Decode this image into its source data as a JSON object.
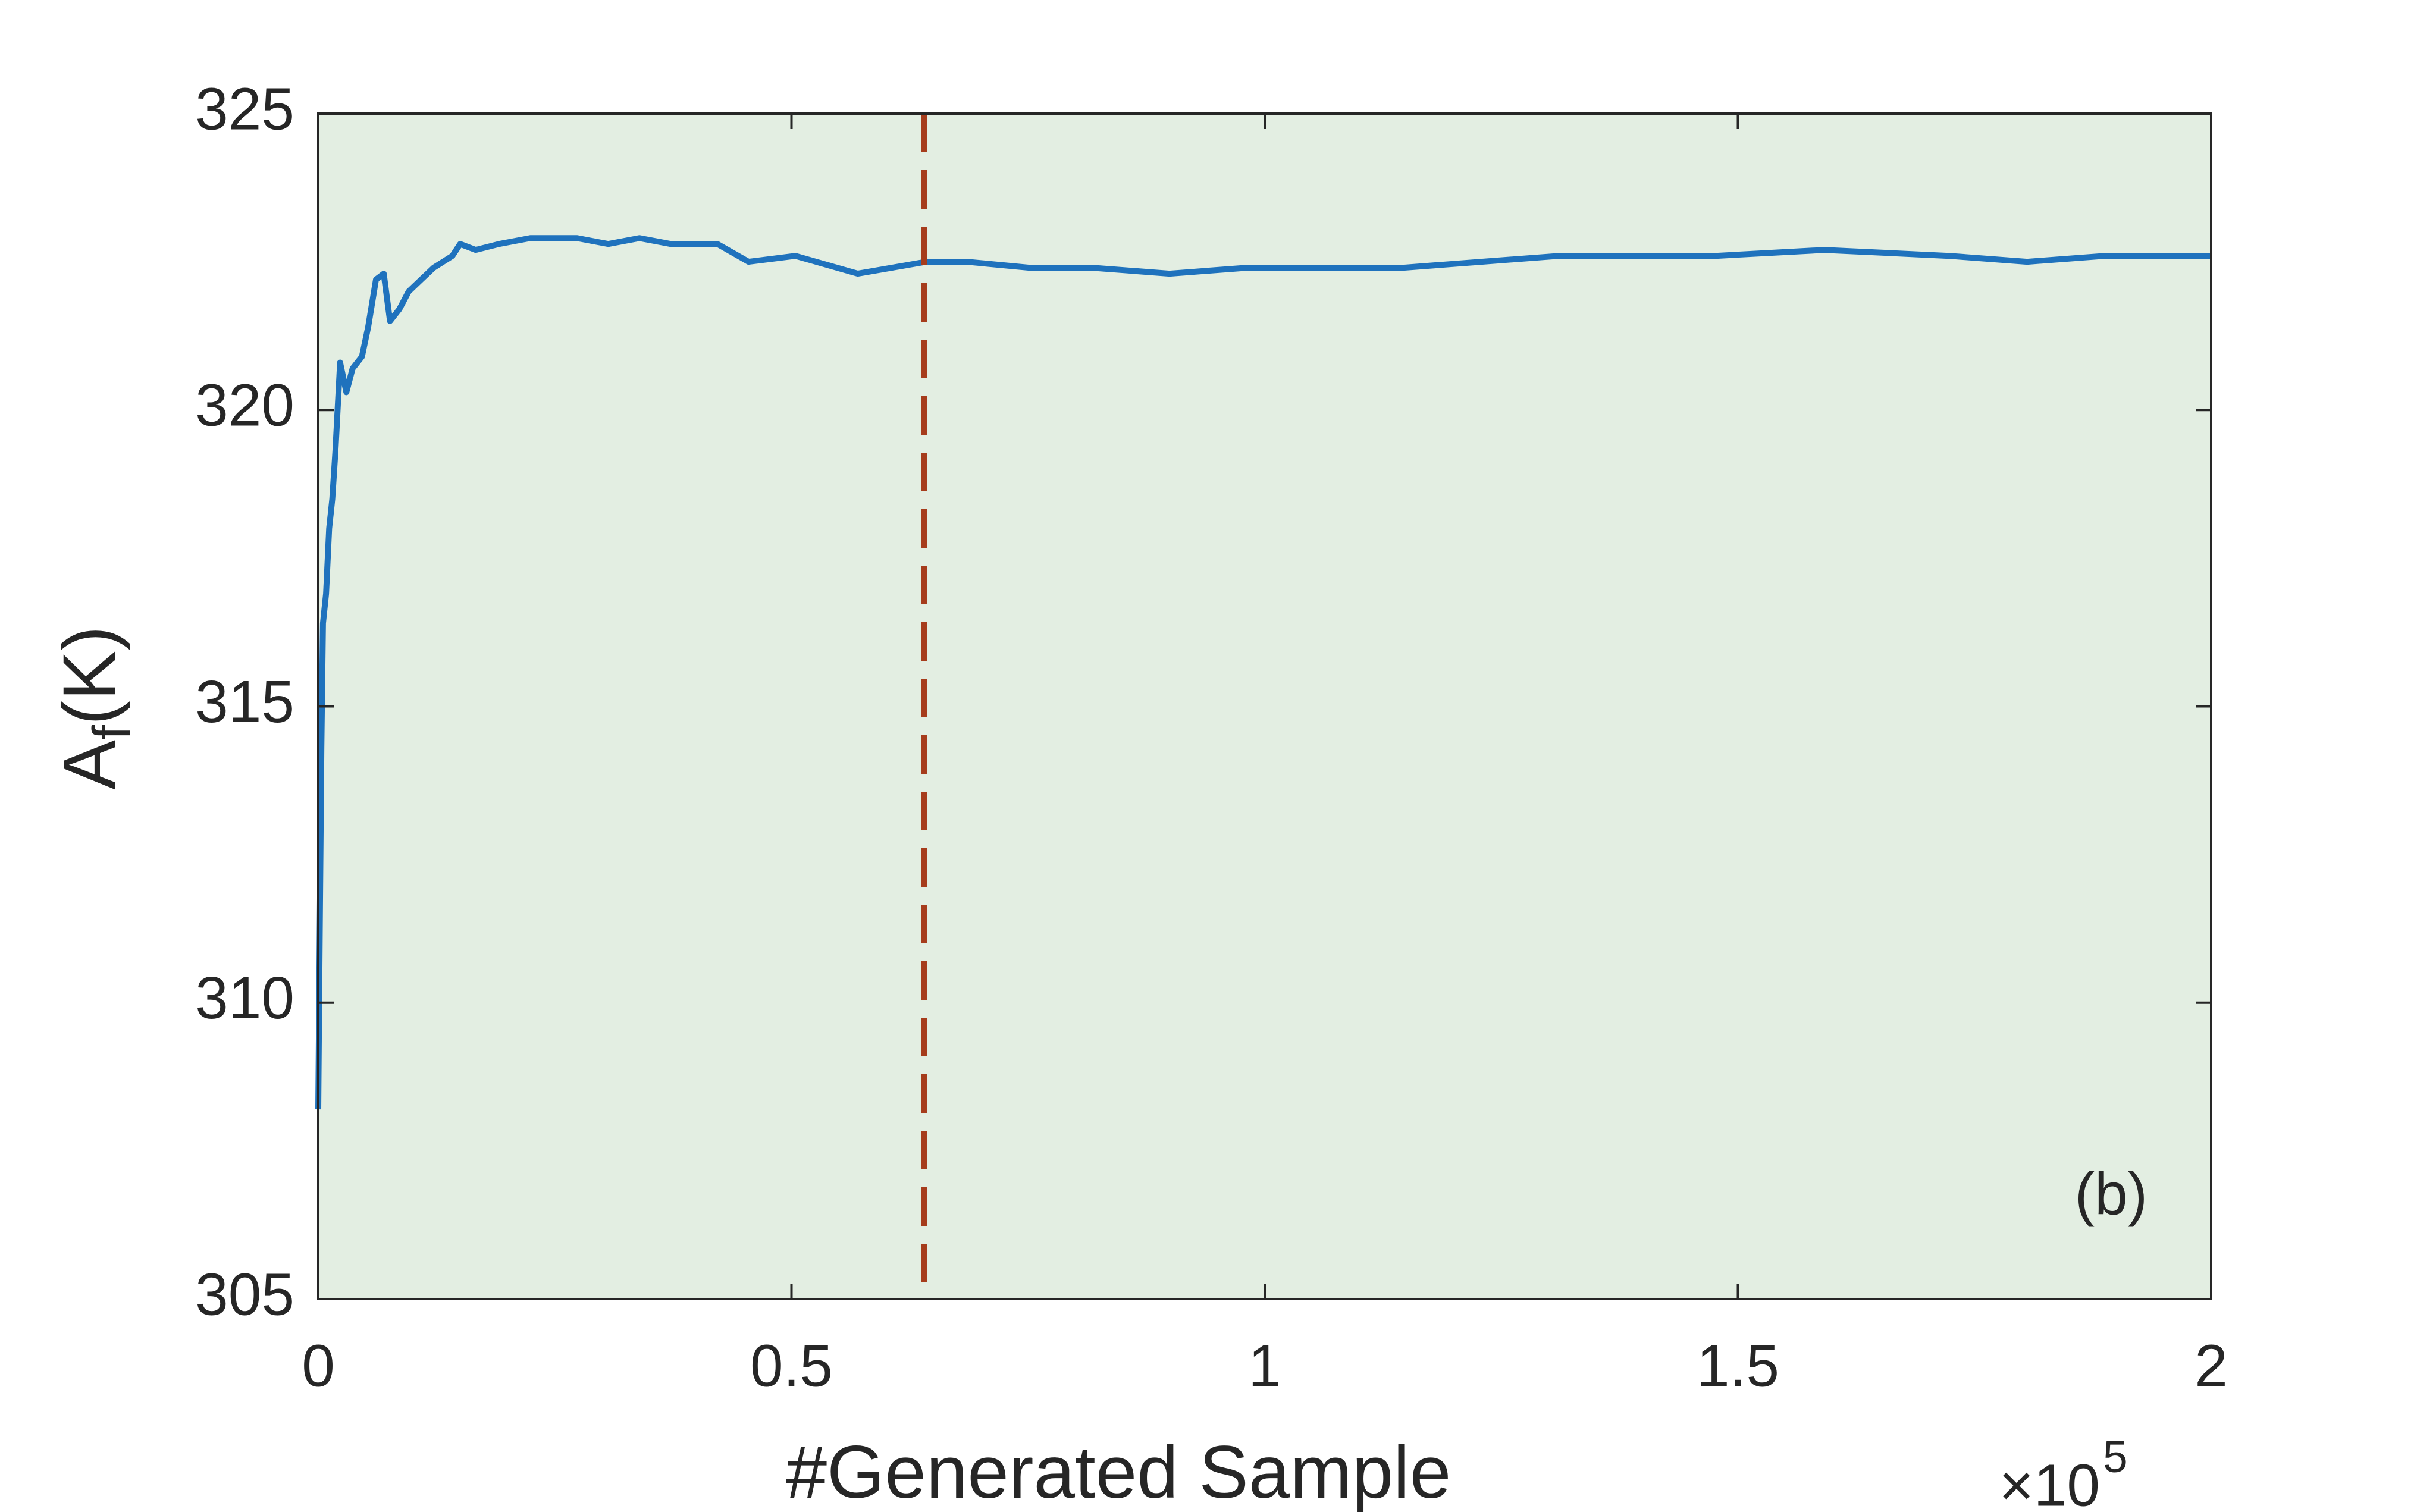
{
  "chart_data": {
    "type": "line",
    "xlabel": "#Generated Sample",
    "x_multiplier": {
      "base": "×10",
      "power": "5"
    },
    "ylabel": {
      "main": "A",
      "subscript": "f",
      "unit": "(K)"
    },
    "annotation": "(b)",
    "background": "#e3eee2",
    "xlim": [
      0,
      200000
    ],
    "xticks": [
      0,
      {
        "value": 50000,
        "label": "0.5"
      },
      {
        "value": 100000,
        "label": "1"
      },
      {
        "value": 150000,
        "label": "1.5"
      },
      {
        "value": 200000,
        "label": "2"
      }
    ],
    "ylim": [
      305,
      325
    ],
    "yticks": [
      305,
      310,
      315,
      320,
      325
    ],
    "vline": {
      "x": 64000,
      "color": "#a63c1c",
      "style": "dashed"
    },
    "series": [
      {
        "color": "#1f72bd",
        "x": [
          0,
          165,
          329,
          494,
          824,
          1153,
          1483,
          1812,
          2306,
          2965,
          3624,
          4613,
          5272,
          6095,
          6919,
          7578,
          8566,
          9555,
          10873,
          12191,
          14168,
          14991,
          16639,
          19110,
          22405,
          27348,
          30643,
          33937,
          37232,
          42175,
          45470,
          50412,
          57002,
          64250,
          68534,
          75124,
          81714,
          89951,
          98188,
          106425,
          114662,
          122900,
          131137,
          141021,
          147611,
          159143,
          172323,
          180560,
          188797,
          200000
        ],
        "values": [
          308.2,
          311.3,
          314.3,
          316.4,
          316.9,
          318,
          318.5,
          319.3,
          320.8,
          320.3,
          320.7,
          320.9,
          321.4,
          322.2,
          322.3,
          321.5,
          321.7,
          322,
          322.2,
          322.4,
          322.6,
          322.8,
          322.7,
          322.8,
          322.9,
          322.9,
          322.8,
          322.9,
          322.8,
          322.8,
          322.5,
          322.6,
          322.3,
          322.5,
          322.5,
          322.4,
          322.4,
          322.3,
          322.4,
          322.4,
          322.4,
          322.5,
          322.6,
          322.6,
          322.6,
          322.7,
          322.6,
          322.5,
          322.6,
          322.6
        ]
      }
    ]
  }
}
